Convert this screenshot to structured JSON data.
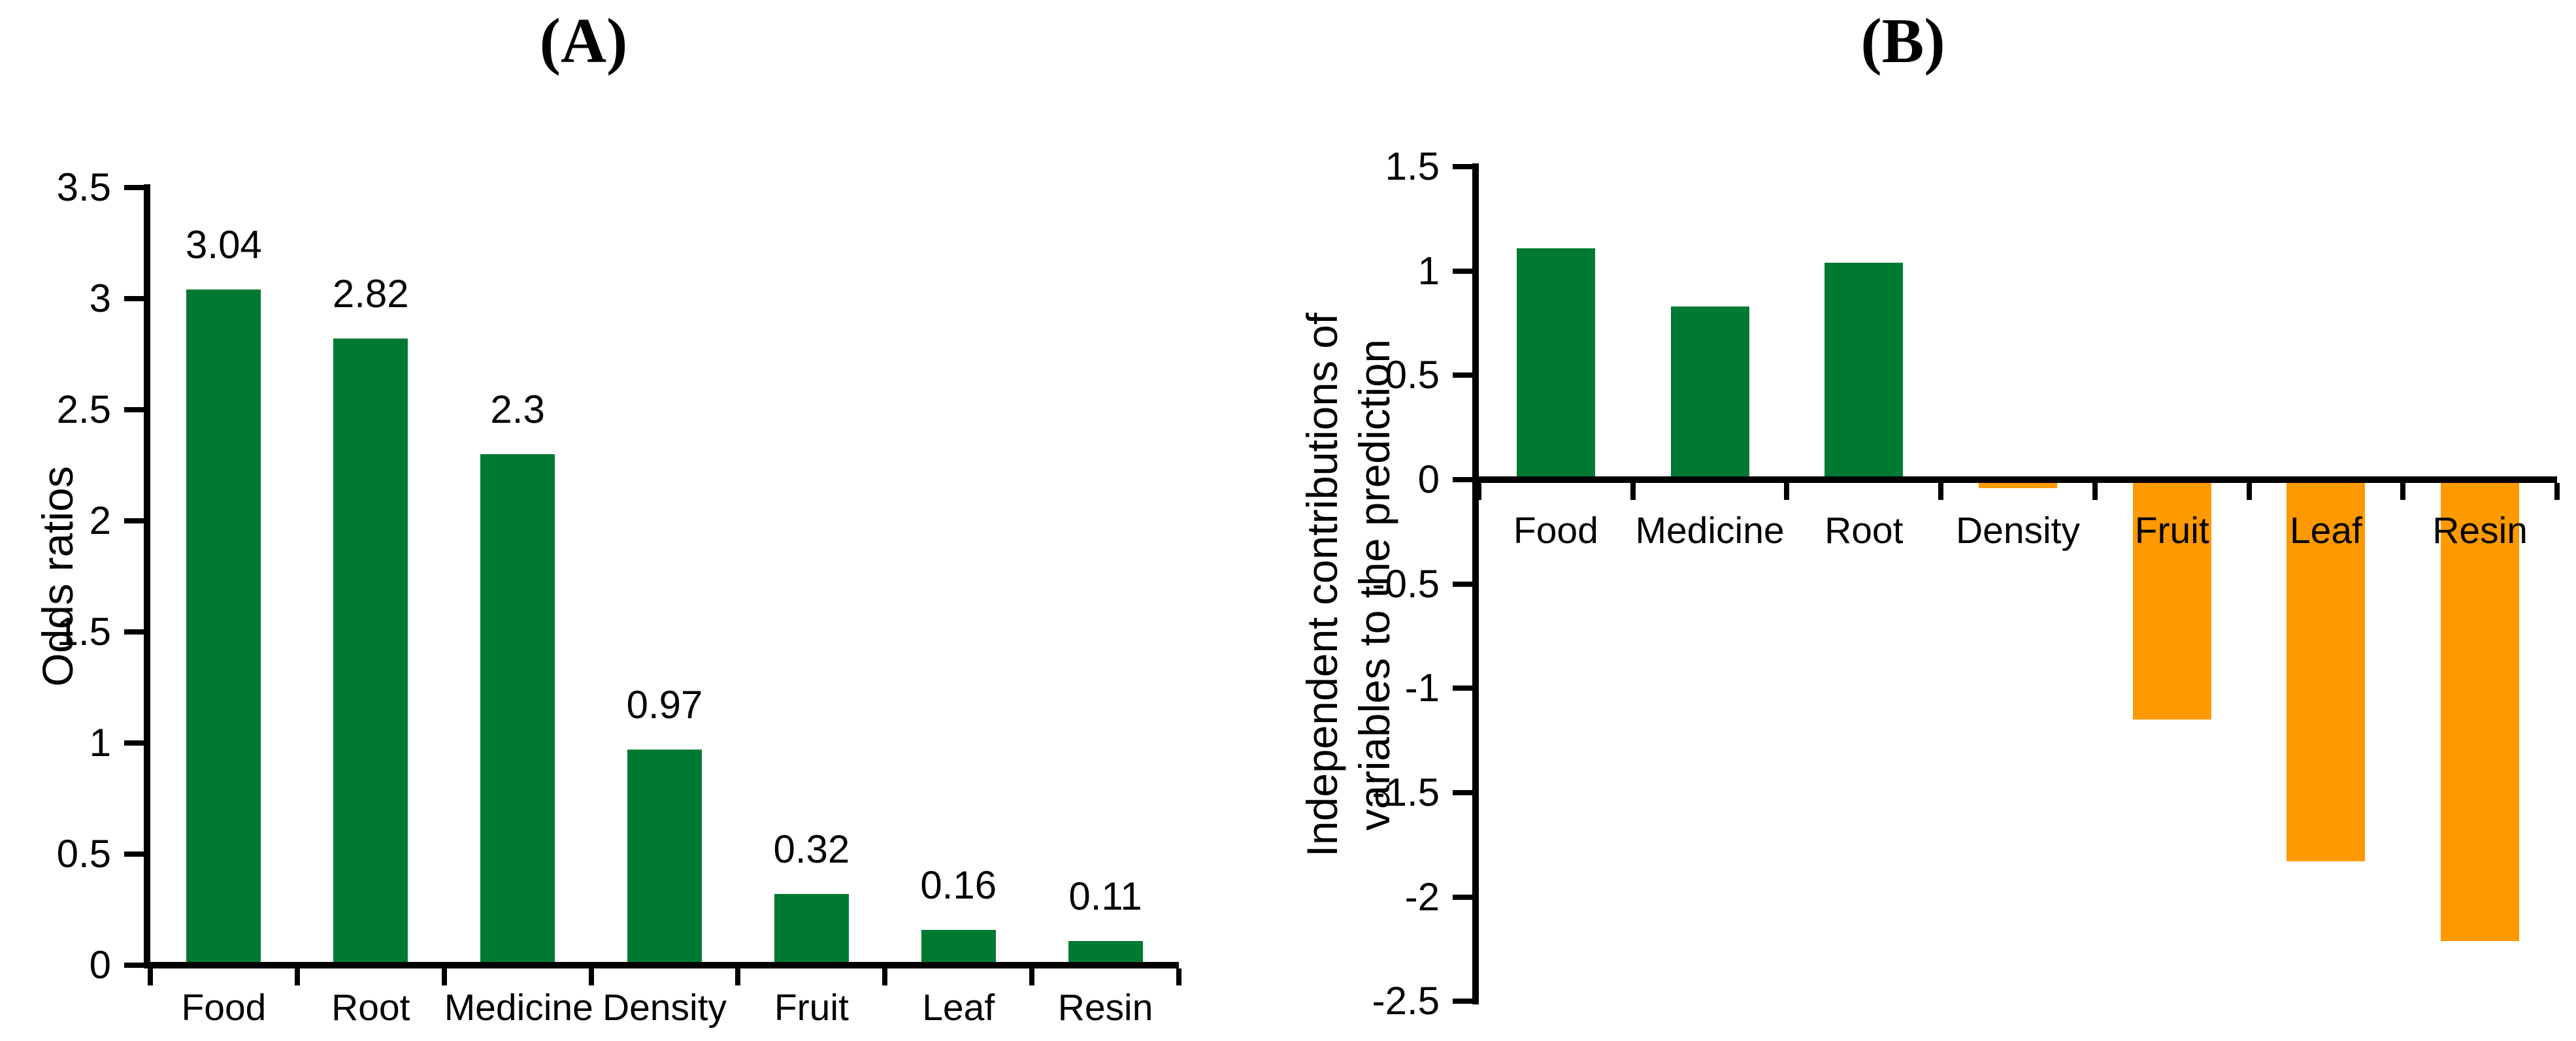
{
  "figure": {
    "background": "#FFFFFF",
    "description_colors": {
      "positive_green": "#007A33",
      "negative_orange": "#FF9900",
      "axis_black": "#000000"
    }
  },
  "chart_data": [
    {
      "id": "A",
      "type": "bar",
      "title": "(A)",
      "ylabel": "Odds ratios",
      "categories": [
        "Food",
        "Root",
        "Medicine",
        "Density",
        "Fruit",
        "Leaf",
        "Resin"
      ],
      "values": [
        3.04,
        2.82,
        2.3,
        0.97,
        0.32,
        0.16,
        0.11
      ],
      "data_labels": [
        "3.04",
        "2.82",
        "2.3",
        "0.97",
        "0.32",
        "0.16",
        "0.11"
      ],
      "yticks": [
        "0",
        "0.5",
        "1",
        "1.5",
        "2",
        "2.5",
        "3",
        "3.5"
      ],
      "ylim": [
        0,
        3.5
      ],
      "ytick_step": 0.5,
      "bar_color": "#007A33",
      "grid": false,
      "legend": "none"
    },
    {
      "id": "B",
      "type": "bar",
      "title": "(B)",
      "ylabel": "Independent contributions of variables to the prediction",
      "ylabel_lines": [
        "Independent contributions of",
        "variables to the prediction"
      ],
      "categories": [
        "Food",
        "Medicine",
        "Root",
        "Density",
        "Fruit",
        "Leaf",
        "Resin"
      ],
      "values": [
        1.11,
        0.83,
        1.04,
        -0.04,
        -1.15,
        -1.83,
        -2.21
      ],
      "yticks": [
        "-2.5",
        "-2",
        "-1.5",
        "-1",
        "-0.5",
        "0",
        "0.5",
        "1",
        "1.5"
      ],
      "ylim": [
        -2.5,
        1.5
      ],
      "ytick_step": 0.5,
      "positive_color": "#007A33",
      "negative_color": "#FF9900",
      "grid": false,
      "legend": "none"
    }
  ]
}
